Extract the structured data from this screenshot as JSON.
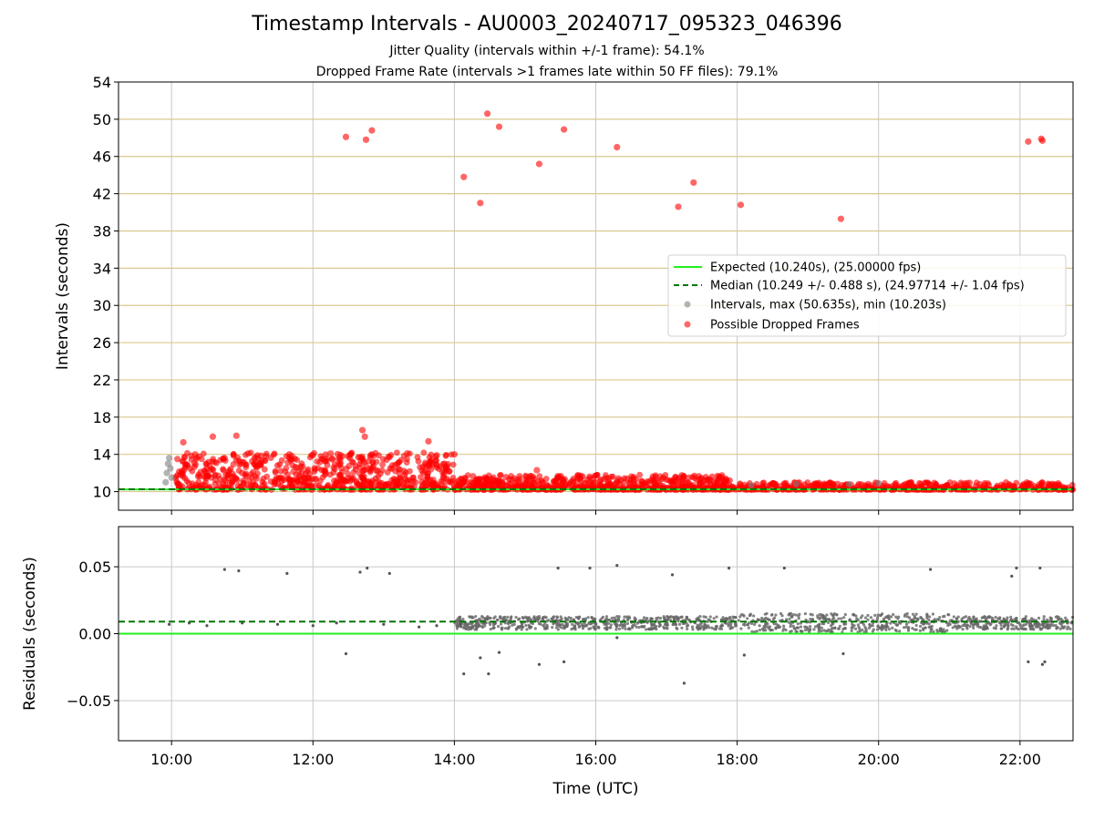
{
  "chart_data": [
    {
      "type": "scatter",
      "title": "Timestamp Intervals - AU0003_20240717_095323_046396",
      "subtitle_1": "Jitter Quality (intervals within +/-1 frame): 54.1%",
      "subtitle_2": "Dropped Frame Rate (intervals >1 frames late within 50 FF files): 79.1%",
      "xlabel": "",
      "ylabel": "Intervals (seconds)",
      "xlim": [
        "09:15",
        "22:45"
      ],
      "ylim": [
        8,
        54
      ],
      "yticks": [
        10,
        14,
        18,
        22,
        26,
        30,
        34,
        38,
        42,
        46,
        50,
        54
      ],
      "hlines": [
        10,
        14,
        18,
        22,
        26,
        30,
        34,
        38,
        42,
        46,
        50
      ],
      "grid": true,
      "legend_position": "center-right",
      "legend": [
        "Expected (10.240s), (25.00000 fps)",
        "Median (10.249 +/- 0.488 s), (24.97714 +/- 1.04 fps)",
        "Intervals, max (50.635s), min (10.203s)",
        "Possible Dropped Frames"
      ],
      "expected_interval": 10.24,
      "median_interval": 10.249,
      "series": [
        {
          "name": "Possible Dropped Frames",
          "points": [
            [
              "12:28",
              48.1
            ],
            [
              "12:45",
              47.8
            ],
            [
              "12:50",
              48.8
            ],
            [
              "14:08",
              43.8
            ],
            [
              "14:22",
              41.0
            ],
            [
              "14:28",
              50.6
            ],
            [
              "14:38",
              49.2
            ],
            [
              "15:12",
              45.2
            ],
            [
              "15:33",
              48.9
            ],
            [
              "16:18",
              47.0
            ],
            [
              "17:10",
              40.6
            ],
            [
              "17:23",
              43.2
            ],
            [
              "18:03",
              40.8
            ],
            [
              "19:28",
              39.3
            ],
            [
              "22:07",
              47.6
            ],
            [
              "22:18",
              47.9
            ],
            [
              "22:19",
              47.7
            ],
            [
              "10:10",
              15.3
            ],
            [
              "10:35",
              15.9
            ],
            [
              "10:55",
              16.0
            ],
            [
              "12:42",
              16.6
            ],
            [
              "12:44",
              15.9
            ],
            [
              "13:38",
              15.4
            ],
            [
              "15:10",
              12.3
            ],
            [
              "10:05",
              13.5
            ],
            [
              "10:20",
              14.0
            ],
            [
              "10:45",
              13.6
            ],
            [
              "11:05",
              14.1
            ],
            [
              "11:20",
              13.8
            ],
            [
              "11:40",
              14.0
            ],
            [
              "12:00",
              13.9
            ],
            [
              "12:15",
              14.1
            ],
            [
              "12:30",
              13.8
            ],
            [
              "12:50",
              14.0
            ],
            [
              "13:05",
              13.7
            ],
            [
              "13:20",
              14.1
            ],
            [
              "13:45",
              13.9
            ],
            [
              "14:00",
              14.0
            ],
            [
              "10:30",
              12.5
            ],
            [
              "11:00",
              12.0
            ],
            [
              "11:30",
              12.8
            ],
            [
              "12:10",
              12.3
            ],
            [
              "12:40",
              12.6
            ],
            [
              "13:10",
              12.2
            ],
            [
              "13:40",
              12.4
            ]
          ]
        },
        {
          "name": "Intervals, max (50.635s), min (10.203s)",
          "points": [
            [
              "09:55",
              11.0
            ],
            [
              "09:56",
              12.0
            ],
            [
              "09:57",
              13.0
            ],
            [
              "09:58",
              13.6
            ],
            [
              "09:59",
              12.5
            ],
            [
              "10:00",
              11.5
            ],
            [
              "18:12",
              10.7
            ],
            [
              "18:50",
              10.8
            ],
            [
              "19:35",
              10.8
            ],
            [
              "20:00",
              10.9
            ]
          ]
        }
      ],
      "dense_red_band": [
        {
          "from": "10:03",
          "to": "14:00",
          "y_min": 10.2,
          "y_max": 14.2
        },
        {
          "from": "14:00",
          "to": "17:55",
          "y_min": 10.2,
          "y_max": 11.8
        },
        {
          "from": "17:55",
          "to": "22:45",
          "y_min": 10.2,
          "y_max": 11.0
        }
      ]
    },
    {
      "type": "scatter",
      "xlabel": "Time (UTC)",
      "ylabel": "Residuals (seconds)",
      "xlim": [
        "09:15",
        "22:45"
      ],
      "ylim": [
        -0.08,
        0.08
      ],
      "yticks": [
        -0.05,
        0.0,
        0.05
      ],
      "ytick_labels": [
        "−0.05",
        "0.00",
        "0.05"
      ],
      "xticks": [
        "10:00",
        "12:00",
        "14:00",
        "16:00",
        "18:00",
        "20:00",
        "22:00"
      ],
      "grid": true,
      "expected_residual": 0.0,
      "median_residual": 0.009,
      "outliers": [
        [
          "10:45",
          0.048
        ],
        [
          "10:57",
          0.047
        ],
        [
          "11:38",
          0.045
        ],
        [
          "12:40",
          0.046
        ],
        [
          "12:46",
          0.049
        ],
        [
          "13:05",
          0.045
        ],
        [
          "15:28",
          0.049
        ],
        [
          "15:55",
          0.049
        ],
        [
          "16:18",
          0.051
        ],
        [
          "17:05",
          0.044
        ],
        [
          "17:53",
          0.049
        ],
        [
          "18:40",
          0.049
        ],
        [
          "20:44",
          0.048
        ],
        [
          "21:53",
          0.043
        ],
        [
          "21:57",
          0.049
        ],
        [
          "22:17",
          0.049
        ],
        [
          "12:28",
          -0.015
        ],
        [
          "14:08",
          -0.03
        ],
        [
          "14:22",
          -0.018
        ],
        [
          "14:29",
          -0.03
        ],
        [
          "14:38",
          -0.014
        ],
        [
          "15:12",
          -0.023
        ],
        [
          "15:33",
          -0.021
        ],
        [
          "16:18",
          -0.003
        ],
        [
          "17:15",
          -0.037
        ],
        [
          "18:06",
          -0.016
        ],
        [
          "19:30",
          -0.015
        ],
        [
          "22:07",
          -0.021
        ],
        [
          "22:19",
          -0.023
        ],
        [
          "22:21",
          -0.021
        ],
        [
          "09:58",
          0.007
        ],
        [
          "10:15",
          0.008
        ],
        [
          "10:30",
          0.006
        ],
        [
          "11:00",
          0.008
        ],
        [
          "11:30",
          0.007
        ],
        [
          "12:00",
          0.006
        ],
        [
          "12:20",
          0.008
        ],
        [
          "13:00",
          0.007
        ],
        [
          "13:30",
          0.005
        ],
        [
          "13:45",
          0.006
        ],
        [
          "14:05",
          0.007
        ]
      ],
      "dense_band": {
        "from": "14:00",
        "to": "22:45",
        "y_min": 0.002,
        "y_max": 0.016
      }
    }
  ],
  "colors": {
    "expected": "#22ee22",
    "median": "#007700",
    "intervals": "#808080",
    "dropped": "#ff0000",
    "hline": "#d9c98e",
    "grid": "#c8c8c8"
  }
}
